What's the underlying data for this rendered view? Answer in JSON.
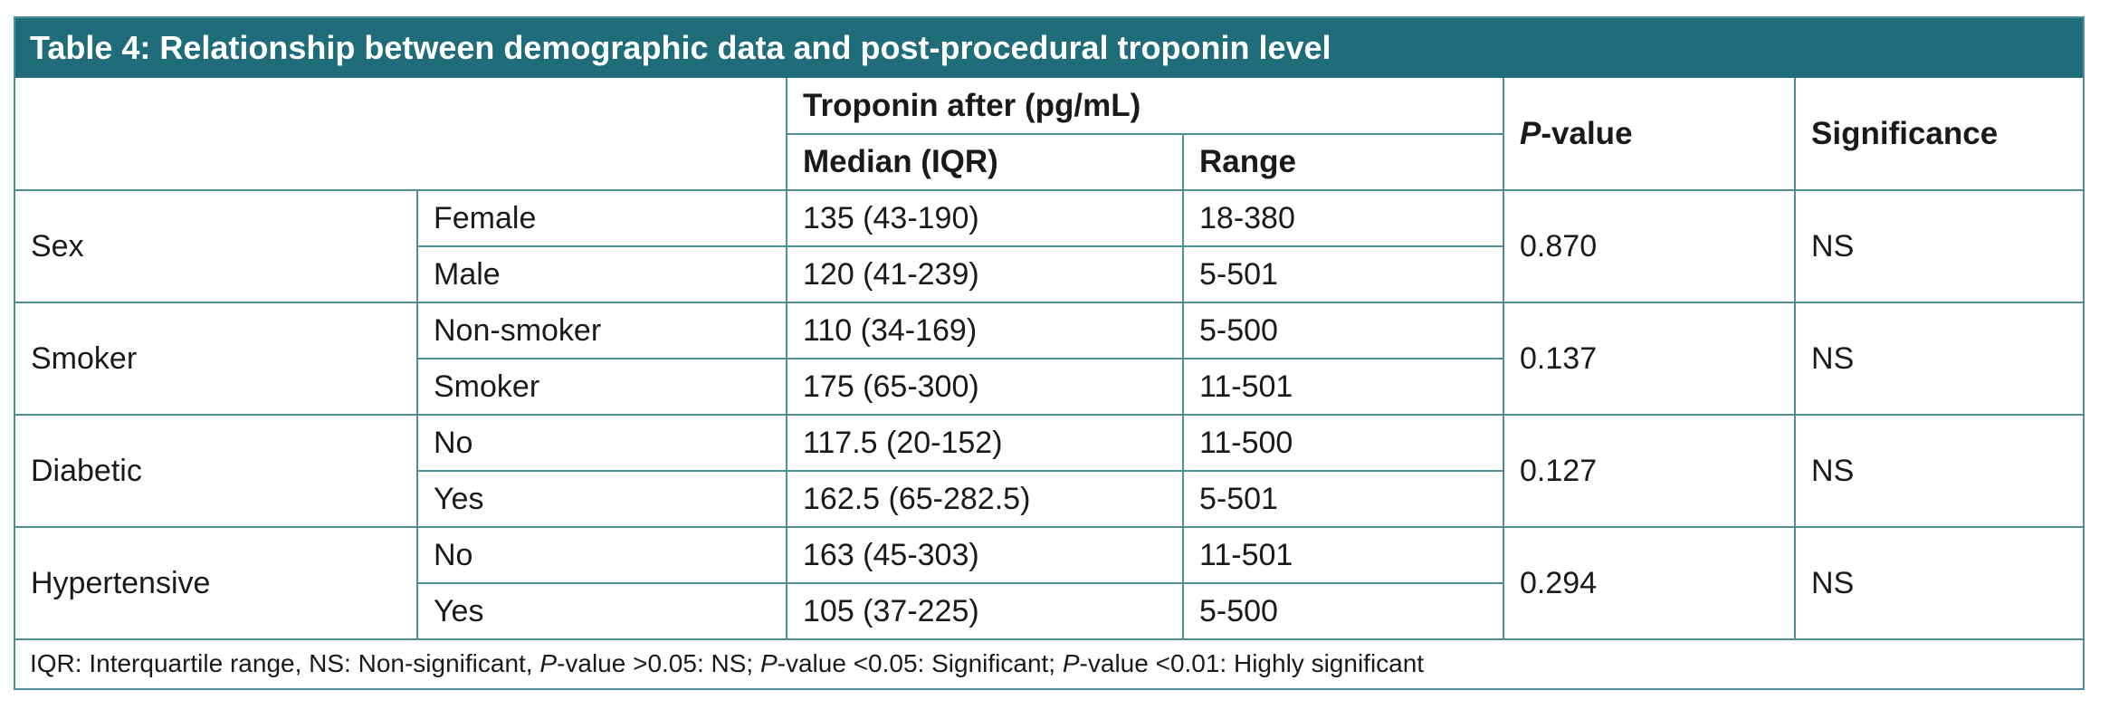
{
  "title": "Table 4: Relationship between demographic data and post-procedural troponin level",
  "header": {
    "group": "Troponin after (pg/mL)",
    "median": "Median (IQR)",
    "range": "Range",
    "p_italic": "P",
    "p_rest": "-value",
    "significance": "Significance"
  },
  "groups": [
    {
      "variable": "Sex",
      "p_value": "0.870",
      "significance": "NS",
      "rows": [
        {
          "category": "Female",
          "median": "135 (43-190)",
          "range": "18-380"
        },
        {
          "category": "Male",
          "median": "120 (41-239)",
          "range": "5-501"
        }
      ]
    },
    {
      "variable": "Smoker",
      "p_value": "0.137",
      "significance": "NS",
      "rows": [
        {
          "category": "Non-smoker",
          "median": "110 (34-169)",
          "range": "5-500"
        },
        {
          "category": "Smoker",
          "median": "175 (65-300)",
          "range": "11-501"
        }
      ]
    },
    {
      "variable": "Diabetic",
      "p_value": "0.127",
      "significance": "NS",
      "rows": [
        {
          "category": "No",
          "median": "117.5 (20-152)",
          "range": "11-500"
        },
        {
          "category": "Yes",
          "median": "162.5 (65-282.5)",
          "range": "5-501"
        }
      ]
    },
    {
      "variable": "Hypertensive",
      "p_value": "0.294",
      "significance": "NS",
      "rows": [
        {
          "category": "No",
          "median": "163 (45-303)",
          "range": "11-501"
        },
        {
          "category": "Yes",
          "median": "105 (37-225)",
          "range": "5-500"
        }
      ]
    }
  ],
  "footnote": {
    "part1": "IQR: Interquartile range, NS: Non-significant, ",
    "p1": "P",
    "part2": "-value >0.05: NS; ",
    "p2": "P",
    "part3": "-value <0.05: Significant; ",
    "p3": "P",
    "part4": "-value <0.01: Highly significant"
  }
}
